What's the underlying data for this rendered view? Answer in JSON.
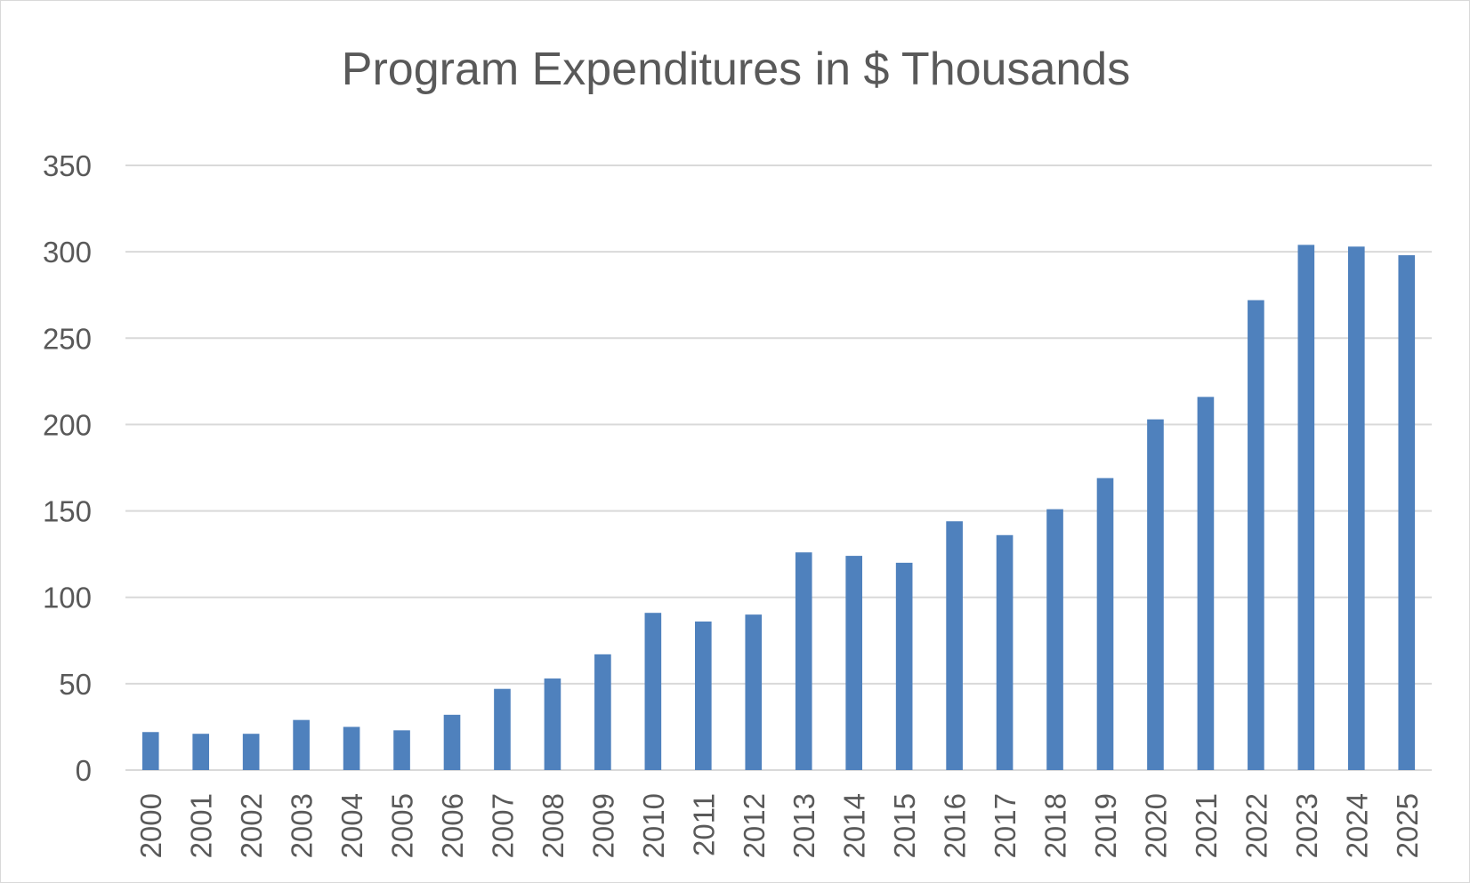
{
  "chart_data": {
    "type": "bar",
    "title": "Program Expenditures in $ Thousands",
    "xlabel": "",
    "ylabel": "",
    "ylim": [
      0,
      350
    ],
    "yticks": [
      0,
      50,
      100,
      150,
      200,
      250,
      300,
      350
    ],
    "grid": true,
    "legend": "none",
    "categories": [
      "2000",
      "2001",
      "2002",
      "2003",
      "2004",
      "2005",
      "2006",
      "2007",
      "2008",
      "2009",
      "2010",
      "2011",
      "2012",
      "2013",
      "2014",
      "2015",
      "2016",
      "2017",
      "2018",
      "2019",
      "2020",
      "2021",
      "2022",
      "2023",
      "2024",
      "2025"
    ],
    "series": [
      {
        "name": "Program Expenditures",
        "color": "#4f81bd",
        "values": [
          22,
          21,
          21,
          29,
          25,
          23,
          32,
          47,
          53,
          67,
          91,
          86,
          90,
          126,
          124,
          120,
          144,
          136,
          151,
          169,
          203,
          216,
          272,
          304,
          303,
          298
        ]
      }
    ]
  }
}
